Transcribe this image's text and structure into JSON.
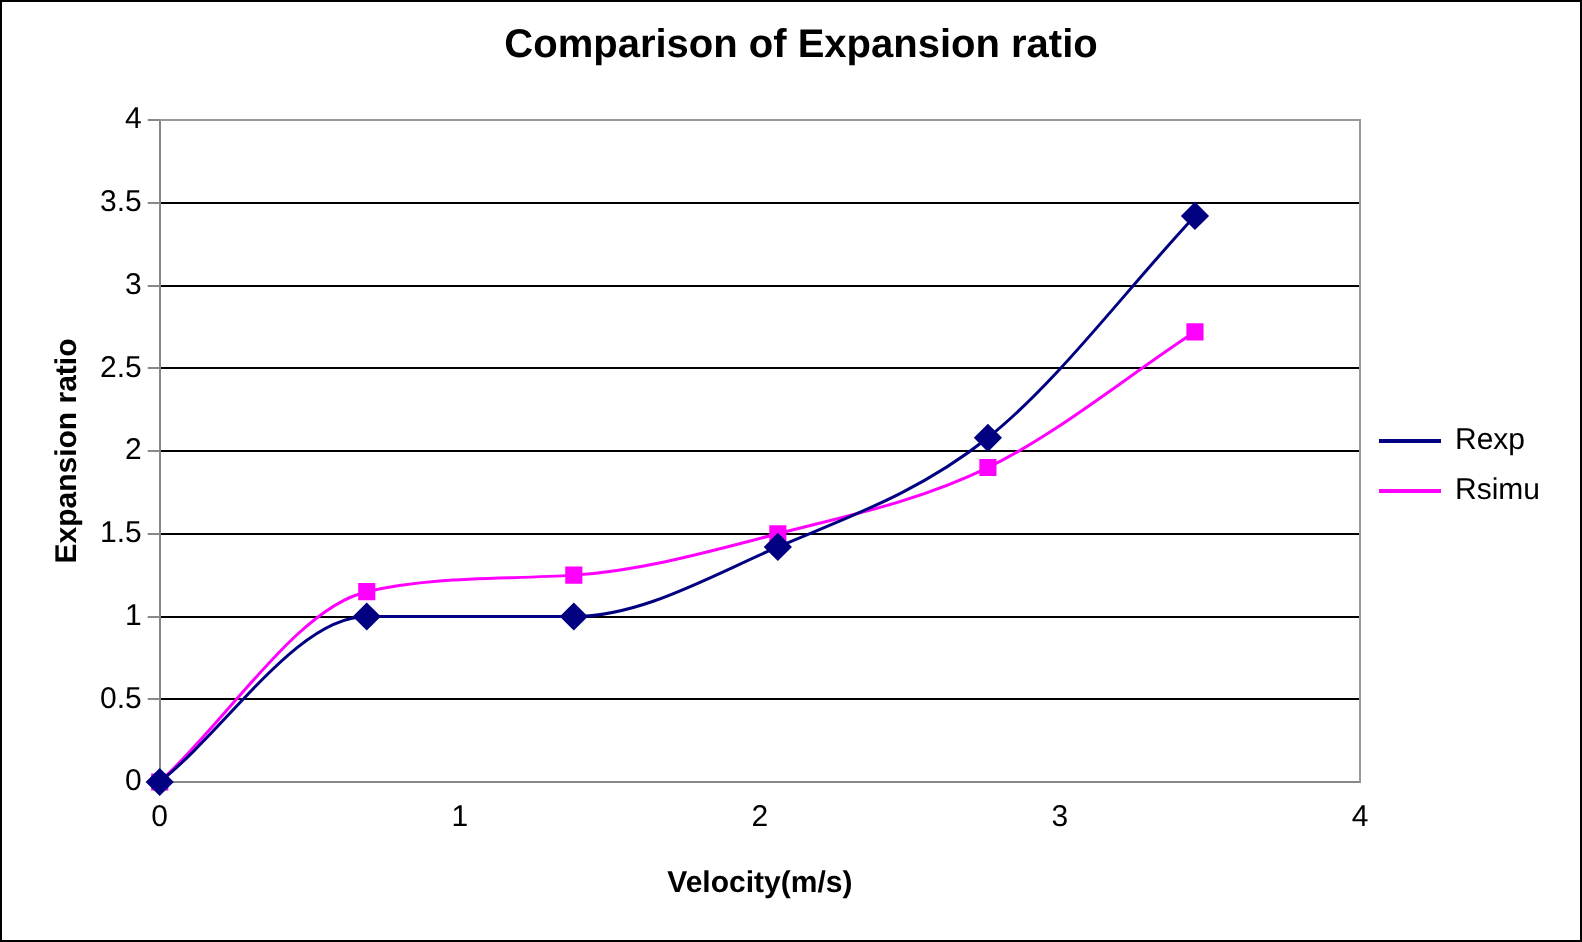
{
  "chart_data": {
    "type": "line",
    "title": "Comparison of Expansion ratio",
    "xlabel": "Velocity(m/s)",
    "ylabel": "Expansion ratio",
    "xlim": [
      0,
      4
    ],
    "xticks": [
      0,
      1,
      2,
      3,
      4
    ],
    "ylim": [
      0,
      4
    ],
    "yticks": [
      0,
      0.5,
      1,
      1.5,
      2,
      2.5,
      3,
      3.5,
      4
    ],
    "grid": "y",
    "legend": "right",
    "series": [
      {
        "name": "Rexp",
        "color": "#000080",
        "marker": "diamond",
        "x": [
          0,
          0.69,
          1.38,
          2.06,
          2.76,
          3.45
        ],
        "values": [
          0,
          1.0,
          1.0,
          1.42,
          2.08,
          3.42
        ]
      },
      {
        "name": "Rsimu",
        "color": "#ff00ff",
        "marker": "square",
        "x": [
          0,
          0.69,
          1.38,
          2.06,
          2.76,
          3.45
        ],
        "values": [
          0,
          1.15,
          1.25,
          1.5,
          1.9,
          2.72
        ]
      }
    ]
  }
}
